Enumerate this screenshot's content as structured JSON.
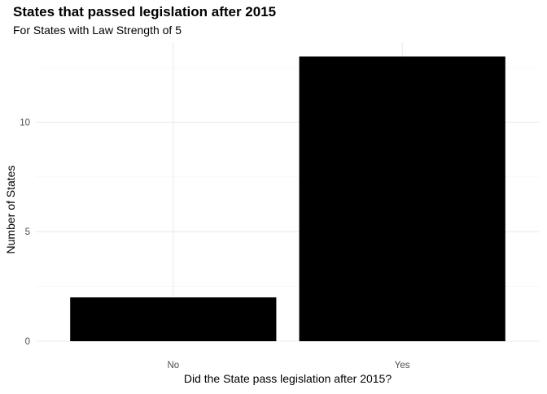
{
  "chart_data": {
    "type": "bar",
    "title": "States that passed legislation after 2015",
    "subtitle": "For States with Law Strength of 5",
    "xlabel": "Did the State pass legislation after 2015?",
    "ylabel": "Number of States",
    "categories": [
      "No",
      "Yes"
    ],
    "values": [
      2,
      13
    ],
    "ylim": [
      0,
      13.65
    ],
    "y_ticks": [
      0,
      5,
      10
    ],
    "grid": true,
    "bar_color": "#000000",
    "grid_color": "#ebebeb"
  }
}
